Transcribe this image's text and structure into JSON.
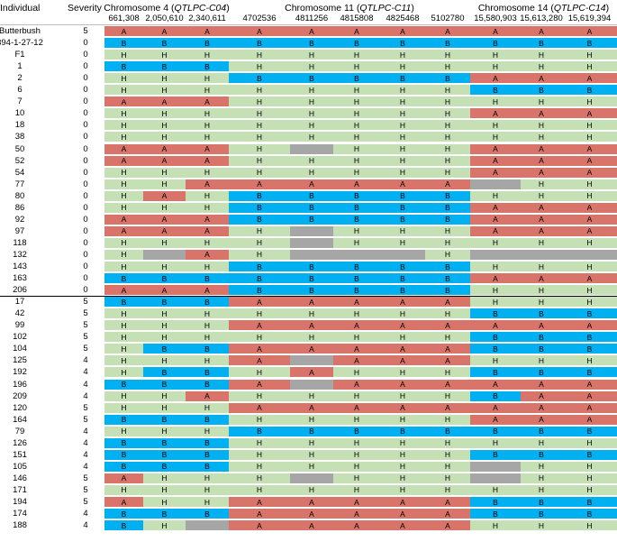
{
  "colors": {
    "A": "#d9746a",
    "B": "#00b0f0",
    "H": "#c5e0b4",
    "gap": "#a6a6a6"
  },
  "header": {
    "individual": "Individual",
    "severity": "Severity",
    "groups": [
      {
        "prefix": "Chromosome 4 (",
        "qtl": "QTLPC-C04",
        "suffix": ")",
        "markers": [
          "661,308",
          "2,050,610",
          "2,340,611"
        ]
      },
      {
        "prefix": "Chromosome 11 (",
        "qtl": "QTLPC-C11",
        "suffix": ")",
        "markers": [
          "4702536",
          "4811256",
          "4815808",
          "4825468",
          "5102780"
        ]
      },
      {
        "prefix": "Chromosome 14 (",
        "qtl": "QTLPC-C14",
        "suffix": ")",
        "markers": [
          "15,580,903",
          "15,613,280",
          "15,619,394"
        ]
      }
    ]
  },
  "rows": [
    {
      "id": "Butterbush",
      "sev": "5",
      "g": "AAAAAAAAAAA"
    },
    {
      "id": "394-1-27-12",
      "sev": "0",
      "g": "BBBBBBBBBBB"
    },
    {
      "id": "F1",
      "sev": "0",
      "g": "HHHHHHHHHHH"
    },
    {
      "id": "1",
      "sev": "0",
      "g": "BBBHHHHHHHH"
    },
    {
      "id": "2",
      "sev": "0",
      "g": "HHHBBBBBAAA"
    },
    {
      "id": "6",
      "sev": "0",
      "g": "HHHHHHHHBBB"
    },
    {
      "id": "7",
      "sev": "0",
      "g": "AAAHHHHHHHH"
    },
    {
      "id": "10",
      "sev": "0",
      "g": "HHHHHHHHAAA"
    },
    {
      "id": "18",
      "sev": "0",
      "g": "HHHHHHHHHHH"
    },
    {
      "id": "38",
      "sev": "0",
      "g": "HHHHHHHHHHH"
    },
    {
      "id": "50",
      "sev": "0",
      "g": "AAAH-HHHAAA"
    },
    {
      "id": "52",
      "sev": "0",
      "g": "AAAHHHHHAAA"
    },
    {
      "id": "54",
      "sev": "0",
      "g": "HHHHHHHHAAA"
    },
    {
      "id": "77",
      "sev": "0",
      "g": "HHAAAAAA-HH"
    },
    {
      "id": "80",
      "sev": "0",
      "g": "HAHBBBBBHHH"
    },
    {
      "id": "86",
      "sev": "0",
      "g": "HHHBBBBBAAA"
    },
    {
      "id": "92",
      "sev": "0",
      "g": "AAABBBBBAAA"
    },
    {
      "id": "97",
      "sev": "0",
      "g": "AAAH-HHHAAA"
    },
    {
      "id": "118",
      "sev": "0",
      "g": "HHHH-HHHHHH"
    },
    {
      "id": "132",
      "sev": "0",
      "g": "H-AH---H---"
    },
    {
      "id": "143",
      "sev": "0",
      "g": "HHHBBBBBHHH"
    },
    {
      "id": "163",
      "sev": "0",
      "g": "BBBBBBBBAAA"
    },
    {
      "id": "206",
      "sev": "0",
      "g": "AAABBBBBHHH"
    },
    {
      "id": "17",
      "sev": "5",
      "g": "BBBAAAAAHHH"
    },
    {
      "id": "42",
      "sev": "5",
      "g": "HHHHHHHHBBB"
    },
    {
      "id": "99",
      "sev": "5",
      "g": "HHHAAAAAAAA"
    },
    {
      "id": "102",
      "sev": "5",
      "g": "HHHHHHHHBBB"
    },
    {
      "id": "104",
      "sev": "5",
      "g": "HBBAAAAABBB"
    },
    {
      "id": "125",
      "sev": "4",
      "g": "HHHA-AAAHHH"
    },
    {
      "id": "192",
      "sev": "4",
      "g": "HBBHAHHHBBB"
    },
    {
      "id": "196",
      "sev": "4",
      "g": "BBBA-AAAAAA"
    },
    {
      "id": "209",
      "sev": "4",
      "g": "HHAHHHHHBAA"
    },
    {
      "id": "120",
      "sev": "5",
      "g": "HHHAAAAAAAA"
    },
    {
      "id": "164",
      "sev": "5",
      "g": "BBBHHHHHAAA"
    },
    {
      "id": "79",
      "sev": "4",
      "g": "HHHBBBBBBBB"
    },
    {
      "id": "126",
      "sev": "4",
      "g": "BBBHHHHHHHH"
    },
    {
      "id": "151",
      "sev": "4",
      "g": "BBBHHHHHBBB"
    },
    {
      "id": "105",
      "sev": "4",
      "g": "BBBHHHHH-HH"
    },
    {
      "id": "146",
      "sev": "5",
      "g": "AHHH-HHH-HH"
    },
    {
      "id": "171",
      "sev": "5",
      "g": "HHHHHHHHHHH"
    },
    {
      "id": "194",
      "sev": "5",
      "g": "AHHAAAAABBB"
    },
    {
      "id": "174",
      "sev": "4",
      "g": "BBBAAAAABBB"
    },
    {
      "id": "188",
      "sev": "4",
      "g": "BH-AAAAAHHH"
    }
  ]
}
